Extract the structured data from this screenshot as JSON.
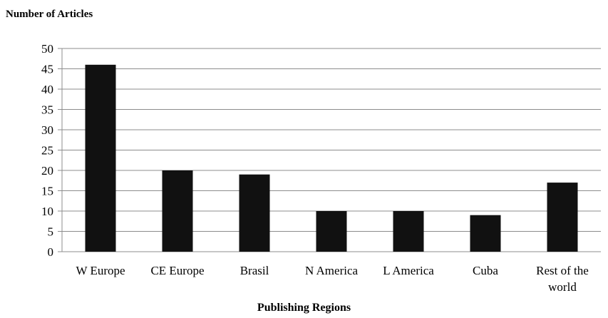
{
  "chart_data": {
    "type": "bar",
    "ylabel": "Number of Articles",
    "xlabel": "Publishing Regions",
    "categories": [
      "W Europe",
      "CE Europe",
      "Brasil",
      "N America",
      "L America",
      "Cuba",
      "Rest of the world"
    ],
    "category_lines": [
      [
        "W Europe"
      ],
      [
        "CE Europe"
      ],
      [
        "Brasil"
      ],
      [
        "N America"
      ],
      [
        "L America"
      ],
      [
        "Cuba"
      ],
      [
        "Rest of the",
        "world"
      ]
    ],
    "values": [
      46,
      20,
      19,
      10,
      10,
      9,
      17
    ],
    "ylim": [
      0,
      50
    ],
    "yticks": [
      0,
      5,
      10,
      15,
      20,
      25,
      30,
      35,
      40,
      45,
      50
    ],
    "grid": true,
    "bar_color": "#111111"
  }
}
